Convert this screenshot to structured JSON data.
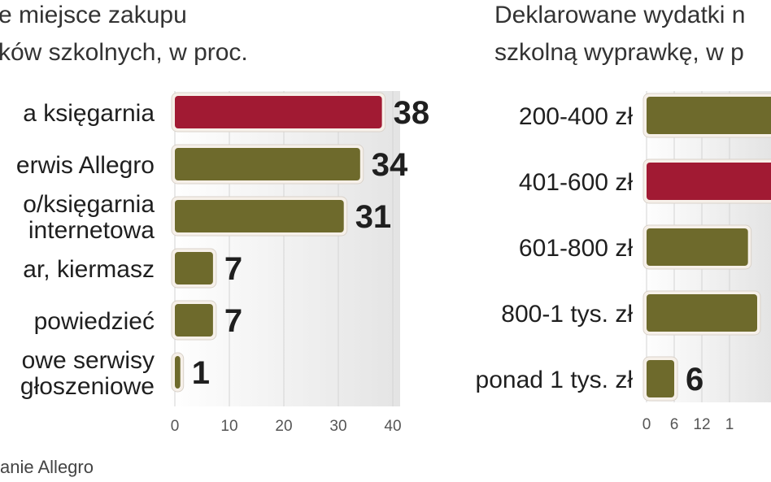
{
  "left_title": [
    "e miejsce zakupu",
    "ków szkolnych, w proc."
  ],
  "right_title": [
    "Deklarowane wydatki n",
    "szkolną wyprawkę, w p"
  ],
  "source": "anie Allegro",
  "colors": {
    "accent": "#a11a33",
    "olive": "#6e6a2c",
    "plot_bg": "#ececec",
    "halo": "#f6f0e9"
  },
  "chart_data": [
    {
      "type": "bar",
      "orientation": "horizontal",
      "categories": [
        [
          "a księgarnia"
        ],
        [
          "erwis Allegro"
        ],
        [
          "o/księgarnia",
          "internetowa"
        ],
        [
          "ar, kiermasz"
        ],
        [
          "powiedzieć"
        ],
        [
          "owe serwisy",
          "głoszeniowe"
        ]
      ],
      "values": [
        38,
        34,
        31,
        7,
        7,
        1
      ],
      "value_labels": [
        "38",
        "34",
        "31",
        "7",
        "7",
        "1"
      ],
      "highlight": [
        0
      ],
      "xlim": [
        0,
        40
      ],
      "xticks": [
        "0",
        "10",
        "20",
        "30",
        "40"
      ],
      "grid": true
    },
    {
      "type": "bar",
      "orientation": "horizontal",
      "categories": [
        [
          "200-400 zł"
        ],
        [
          "401-600 zł"
        ],
        [
          "601-800 zł"
        ],
        [
          "800-1 tys. zł"
        ],
        [
          "ponad 1 tys. zł"
        ]
      ],
      "values": [
        30,
        30,
        22,
        24,
        6
      ],
      "value_labels": [
        "",
        "",
        "",
        "",
        "6"
      ],
      "highlight": [
        1
      ],
      "xticks": [
        "0",
        "6",
        "12",
        "1"
      ],
      "grid": true
    }
  ]
}
